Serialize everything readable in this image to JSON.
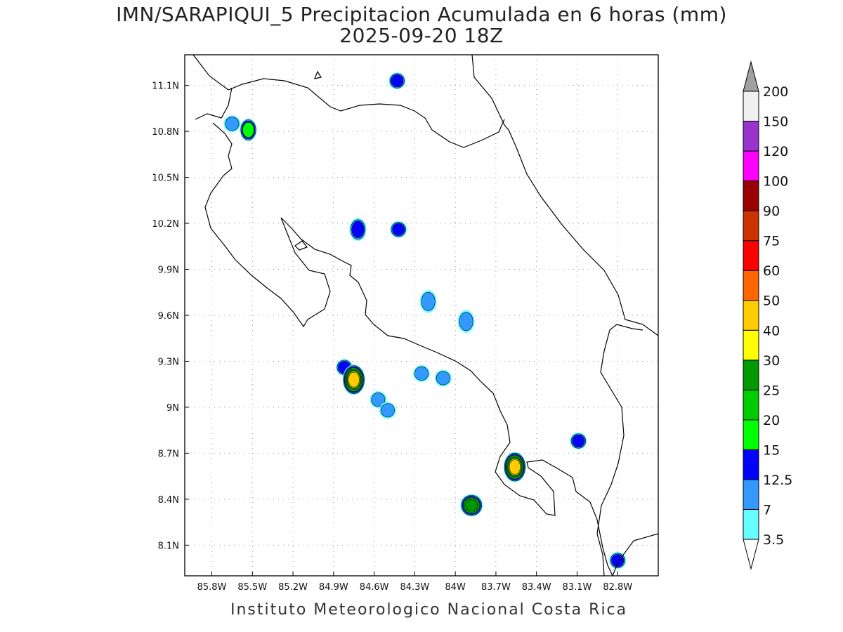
{
  "header": {
    "title_line1": "IMN/SARAPIQUI_5 Precipitacion Acumulada en 6 horas (mm)",
    "title_line2": "2025-09-20 18Z"
  },
  "footer": {
    "credit": "Instituto Meteorologico Nacional Costa Rica"
  },
  "map": {
    "lon_range": [
      -86.0,
      -82.5
    ],
    "lat_range": [
      7.9,
      11.3
    ],
    "lon_ticks": [
      {
        "value": -85.8,
        "label": "85.8W"
      },
      {
        "value": -85.5,
        "label": "85.5W"
      },
      {
        "value": -85.2,
        "label": "85.2W"
      },
      {
        "value": -84.9,
        "label": "84.9W"
      },
      {
        "value": -84.6,
        "label": "84.6W"
      },
      {
        "value": -84.3,
        "label": "84.3W"
      },
      {
        "value": -84.0,
        "label": "84W"
      },
      {
        "value": -83.7,
        "label": "83.7W"
      },
      {
        "value": -83.4,
        "label": "83.4W"
      },
      {
        "value": -83.1,
        "label": "83.1W"
      },
      {
        "value": -82.8,
        "label": "82.8W"
      }
    ],
    "lat_ticks": [
      {
        "value": 11.1,
        "label": "11.1N"
      },
      {
        "value": 10.8,
        "label": "10.8N"
      },
      {
        "value": 10.5,
        "label": "10.5N"
      },
      {
        "value": 10.2,
        "label": "10.2N"
      },
      {
        "value": 9.9,
        "label": "9.9N"
      },
      {
        "value": 9.6,
        "label": "9.6N"
      },
      {
        "value": 9.3,
        "label": "9.3N"
      },
      {
        "value": 9.0,
        "label": "9N"
      },
      {
        "value": 8.7,
        "label": "8.7N"
      },
      {
        "value": 8.4,
        "label": "8.4N"
      },
      {
        "value": 8.1,
        "label": "8.1N"
      }
    ],
    "gridlines": "dotted",
    "precip_cells": [
      {
        "lon": -85.53,
        "lat": 10.81,
        "max_mm": 15
      },
      {
        "lon": -85.65,
        "lat": 10.85,
        "max_mm": 7
      },
      {
        "lon": -84.43,
        "lat": 11.13,
        "max_mm": 12.5
      },
      {
        "lon": -84.72,
        "lat": 10.16,
        "max_mm": 12.5
      },
      {
        "lon": -84.42,
        "lat": 10.16,
        "max_mm": 12.5
      },
      {
        "lon": -84.82,
        "lat": 9.26,
        "max_mm": 12.5
      },
      {
        "lon": -84.75,
        "lat": 9.18,
        "max_mm": 40
      },
      {
        "lon": -84.57,
        "lat": 9.05,
        "max_mm": 7
      },
      {
        "lon": -84.5,
        "lat": 8.98,
        "max_mm": 7
      },
      {
        "lon": -83.56,
        "lat": 8.61,
        "max_mm": 40
      },
      {
        "lon": -83.88,
        "lat": 8.36,
        "max_mm": 25
      },
      {
        "lon": -83.09,
        "lat": 8.78,
        "max_mm": 12.5
      },
      {
        "lon": -83.92,
        "lat": 9.56,
        "max_mm": 7
      },
      {
        "lon": -84.25,
        "lat": 9.22,
        "max_mm": 7
      },
      {
        "lon": -84.09,
        "lat": 9.19,
        "max_mm": 7
      },
      {
        "lon": -84.2,
        "lat": 9.69,
        "max_mm": 7
      },
      {
        "lon": -82.8,
        "lat": 8.0,
        "max_mm": 12.5
      }
    ]
  },
  "colorbar": {
    "labels": [
      "3.5",
      "7",
      "12.5",
      "15",
      "20",
      "25",
      "30",
      "40",
      "50",
      "60",
      "75",
      "90",
      "100",
      "120",
      "150",
      "200"
    ],
    "colors": [
      "#ffffff",
      "#66ffff",
      "#3399ff",
      "#0000ff",
      "#00ff00",
      "#00cc00",
      "#009900",
      "#ffff00",
      "#ffcc00",
      "#ff6600",
      "#ff0000",
      "#cc3300",
      "#990000",
      "#ff00ff",
      "#9933cc",
      "#f0f0f0",
      "#a0a0a0"
    ]
  }
}
